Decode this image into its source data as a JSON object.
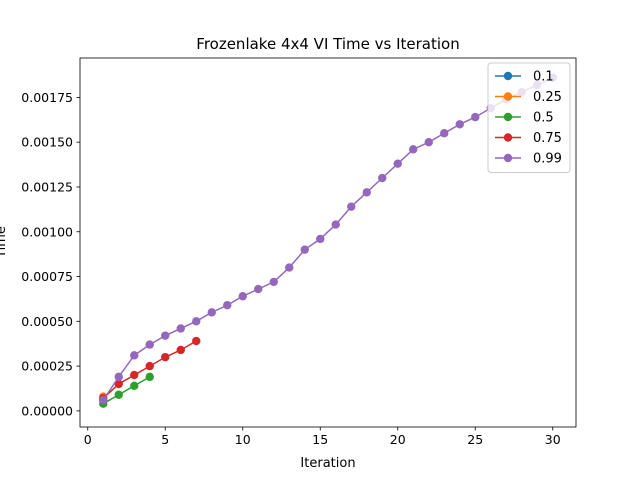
{
  "chart_data": {
    "type": "line",
    "title": "Frozenlake 4x4 VI Time vs Iteration",
    "xlabel": "Iteration",
    "ylabel": "Time",
    "xlim": [
      -0.5,
      31.5
    ],
    "ylim": [
      -9e-05,
      0.00197
    ],
    "xticks": [
      0,
      5,
      10,
      15,
      20,
      25,
      30
    ],
    "xtick_labels": [
      "0",
      "5",
      "10",
      "15",
      "20",
      "25",
      "30"
    ],
    "yticks": [
      0,
      0.00025,
      0.0005,
      0.00075,
      0.001,
      0.00125,
      0.0015,
      0.00175
    ],
    "ytick_labels": [
      "0.00000",
      "0.00025",
      "0.00050",
      "0.00075",
      "0.00100",
      "0.00125",
      "0.00150",
      "0.00175"
    ],
    "grid": false,
    "legend_position": "top-right",
    "series": [
      {
        "name": "0.1",
        "color": "#1f77b4",
        "x": [
          1
        ],
        "y": [
          6e-05
        ]
      },
      {
        "name": "0.25",
        "color": "#ff7f0e",
        "x": [
          1
        ],
        "y": [
          8e-05
        ]
      },
      {
        "name": "0.5",
        "color": "#2ca02c",
        "x": [
          1,
          2,
          3,
          4
        ],
        "y": [
          4e-05,
          9e-05,
          0.00014,
          0.00019
        ]
      },
      {
        "name": "0.75",
        "color": "#d62728",
        "x": [
          1,
          2,
          3,
          4,
          5,
          6,
          7
        ],
        "y": [
          7e-05,
          0.00015,
          0.0002,
          0.00025,
          0.0003,
          0.00034,
          0.00039
        ]
      },
      {
        "name": "0.99",
        "color": "#9467bd",
        "x": [
          1,
          2,
          3,
          4,
          5,
          6,
          7,
          8,
          9,
          10,
          11,
          12,
          13,
          14,
          15,
          16,
          17,
          18,
          19,
          20,
          21,
          22,
          23,
          24,
          25,
          26,
          27,
          28,
          29,
          30
        ],
        "y": [
          6e-05,
          0.00019,
          0.00031,
          0.00037,
          0.00042,
          0.00046,
          0.0005,
          0.00055,
          0.00059,
          0.00064,
          0.00068,
          0.00072,
          0.0008,
          0.0009,
          0.00096,
          0.00104,
          0.00114,
          0.00122,
          0.0013,
          0.00138,
          0.00146,
          0.0015,
          0.00155,
          0.0016,
          0.00164,
          0.00169,
          0.00174,
          0.00178,
          0.00182,
          0.00186
        ]
      }
    ]
  }
}
